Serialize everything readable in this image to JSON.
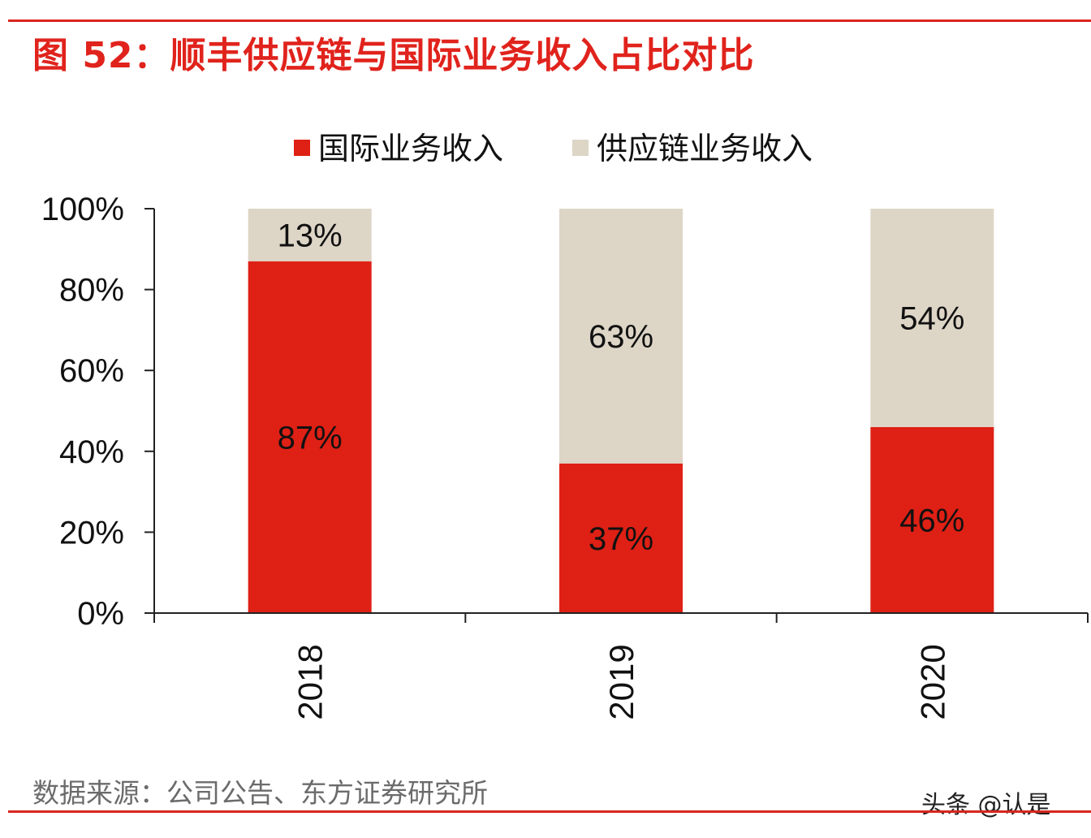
{
  "title": "图 52：顺丰供应链与国际业务收入占比对比",
  "source": "数据来源：公司公告、东方证券研究所",
  "watermark": "头条 @认是",
  "chart_data": {
    "type": "bar",
    "stacked": true,
    "title": "图 52：顺丰供应链与国际业务收入占比对比",
    "categories": [
      "2018",
      "2019",
      "2020"
    ],
    "series": [
      {
        "name": "国际业务收入",
        "values": [
          87,
          37,
          46
        ],
        "color": "#de2015"
      },
      {
        "name": "供应链业务收入",
        "values": [
          13,
          63,
          54
        ],
        "color": "#ddd5c6"
      }
    ],
    "data_labels": [
      [
        "87%",
        "37%",
        "46%"
      ],
      [
        "13%",
        "63%",
        "54%"
      ]
    ],
    "yticks": [
      "0%",
      "20%",
      "40%",
      "60%",
      "80%",
      "100%"
    ],
    "ylim": [
      0,
      100
    ],
    "legend": "top",
    "grid": false
  }
}
